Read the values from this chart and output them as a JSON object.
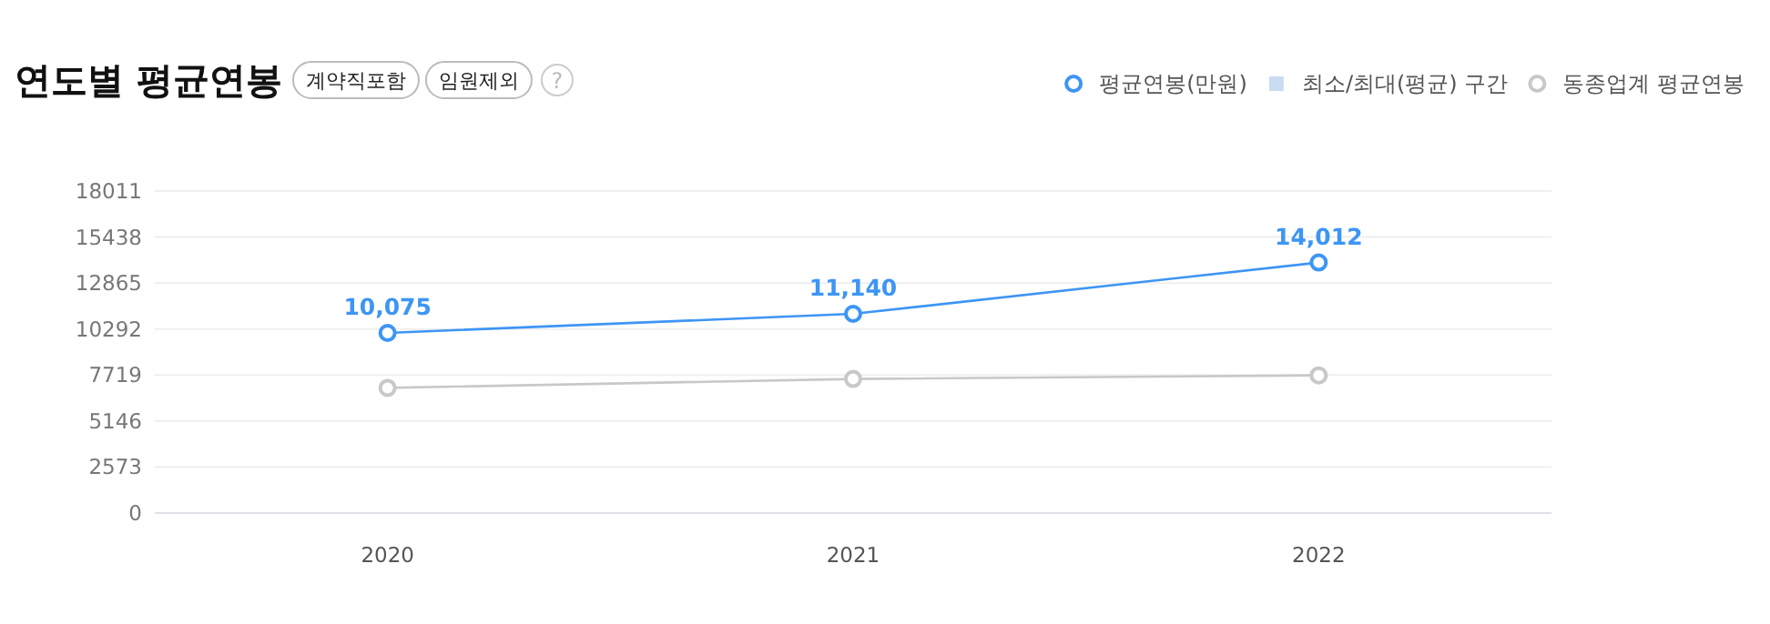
{
  "chart_data": {
    "type": "line",
    "title": "연도별 평균연봉",
    "annotations": [
      "계약직포함",
      "임원제외",
      "?"
    ],
    "categories": [
      "2020",
      "2021",
      "2022"
    ],
    "series": [
      {
        "name": "평균연봉(만원)",
        "color": "#3d95f5",
        "values": [
          10075,
          11140,
          14012
        ],
        "value_labels": [
          "10,075",
          "11,140",
          "14,012"
        ]
      },
      {
        "name": "최소/최대(평균) 구간",
        "type": "area",
        "color": "#c9dcf2",
        "values": [
          null,
          null,
          null
        ]
      },
      {
        "name": "동종업계 평균연봉",
        "color": "#c8c8c8",
        "values": [
          7000,
          7500,
          7700
        ]
      }
    ],
    "ylim": [
      0,
      18011
    ],
    "yticks": [
      0,
      2573,
      5146,
      7719,
      10292,
      12865,
      15438,
      18011
    ],
    "grid": "y",
    "legend": "top right",
    "marker": "circle"
  }
}
